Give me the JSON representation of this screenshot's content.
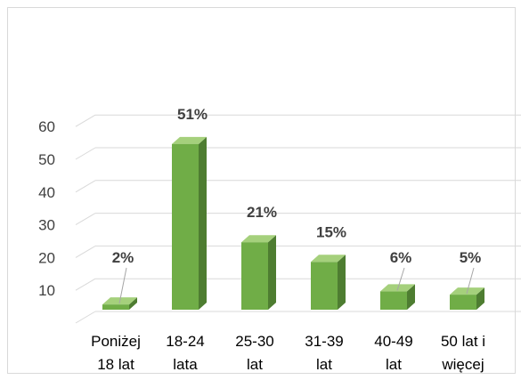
{
  "chart_data": {
    "type": "bar",
    "categories": [
      [
        "Poniżej",
        "18 lat"
      ],
      [
        "18-24",
        "lata"
      ],
      [
        "25-30",
        "lat"
      ],
      [
        "31-39",
        "lat"
      ],
      [
        "40-49",
        "lat"
      ],
      [
        "50 lat i",
        "więcej"
      ]
    ],
    "values": [
      2,
      51,
      21,
      15,
      6,
      5
    ],
    "data_labels": [
      "2%",
      "51%",
      "21%",
      "15%",
      "6%",
      "5%"
    ],
    "y_ticks": [
      10,
      20,
      30,
      40,
      50,
      60
    ],
    "ylim": [
      0,
      60
    ],
    "title": "",
    "xlabel": "",
    "ylabel": "",
    "grid": true,
    "legend": "none",
    "bar_colors": {
      "front": "#70ad47",
      "side": "#4e7d31",
      "top": "#a5d07c"
    },
    "gridline_color": "#d9d9d9"
  }
}
